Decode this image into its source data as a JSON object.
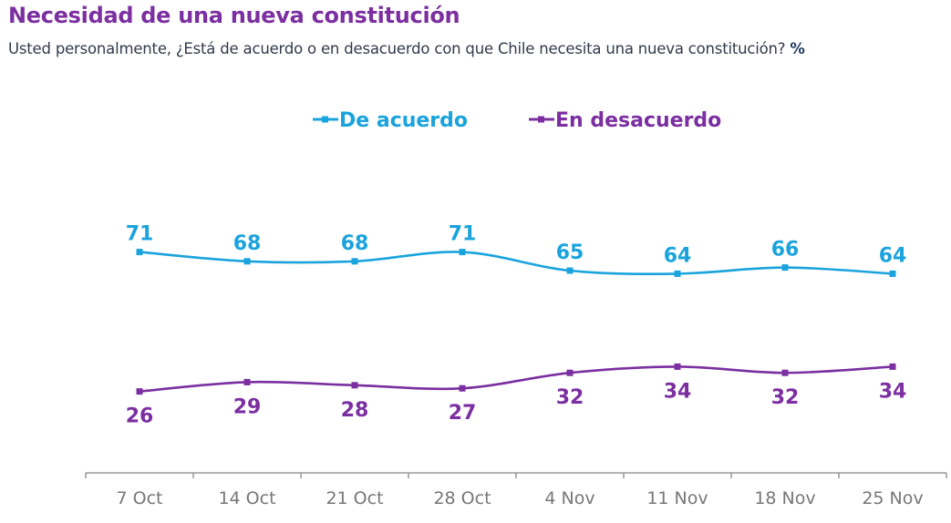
{
  "title": "Necesidad de una nueva constitución",
  "subtitle": "Usted personalmente, ¿Está de acuerdo o en desacuerdo con que Chile necesita una nueva constitución?",
  "unit": "%",
  "chart_data": {
    "type": "line",
    "categories": [
      "7 Oct",
      "14 Oct",
      "21 Oct",
      "28 Oct",
      "4 Nov",
      "11 Nov",
      "18 Nov",
      "25 Nov"
    ],
    "series": [
      {
        "name": "De acuerdo",
        "color": "#1aa3dc",
        "values": [
          71,
          68,
          68,
          71,
          65,
          64,
          66,
          64
        ]
      },
      {
        "name": "En desacuerdo",
        "color": "#7b2fa0",
        "values": [
          26,
          29,
          28,
          27,
          32,
          34,
          32,
          34
        ]
      }
    ],
    "ylim": [
      0,
      100
    ],
    "grid": false,
    "legend": "top-center",
    "smooth": true,
    "axis_color": "#888888",
    "tick_label_color": "#777777"
  }
}
